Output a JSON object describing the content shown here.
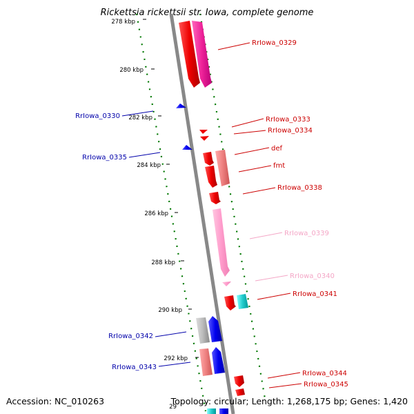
{
  "title": "Rickettsia rickettsii str. Iowa, complete genome",
  "footer": {
    "accession": "Accession: NC_010263",
    "topology": "Topology: circular; Length: 1,268,175 bp; Genes: 1,420"
  },
  "ticks": [
    "278 kbp",
    "280 kbp",
    "282 kbp",
    "284 kbp",
    "286 kbp",
    "288 kbp",
    "290 kbp",
    "292 kbp",
    "29"
  ],
  "genes": [
    {
      "name": "RrIowa_0329",
      "color": "#cc0000"
    },
    {
      "name": "RrIowa_0330",
      "color": "#0000aa"
    },
    {
      "name": "RrIowa_0333",
      "color": "#cc0000"
    },
    {
      "name": "RrIowa_0334",
      "color": "#cc0000"
    },
    {
      "name": "RrIowa_0335",
      "color": "#0000aa"
    },
    {
      "name": "def",
      "color": "#cc0000"
    },
    {
      "name": "fmt",
      "color": "#cc0000"
    },
    {
      "name": "RrIowa_0338",
      "color": "#cc0000"
    },
    {
      "name": "RrIowa_0339",
      "color": "#f4a6c6"
    },
    {
      "name": "RrIowa_0340",
      "color": "#f4a6c6"
    },
    {
      "name": "RrIowa_0341",
      "color": "#cc0000"
    },
    {
      "name": "RrIowa_0342",
      "color": "#0000aa"
    },
    {
      "name": "RrIowa_0343",
      "color": "#0000aa"
    },
    {
      "name": "RrIowa_0344",
      "color": "#cc0000"
    },
    {
      "name": "RrIowa_0345",
      "color": "#cc0000"
    }
  ],
  "colors": {
    "backbone": "#888888",
    "gc_dots": "#007700",
    "gene_red": "#ee1111",
    "gene_pink": "#ee1188",
    "gene_lightpink": "#ff99cc",
    "gene_salmon": "#ee7777",
    "gene_blue": "#1111ee",
    "gene_cyan": "#11cccc",
    "gene_gray": "#aaaaaa"
  }
}
